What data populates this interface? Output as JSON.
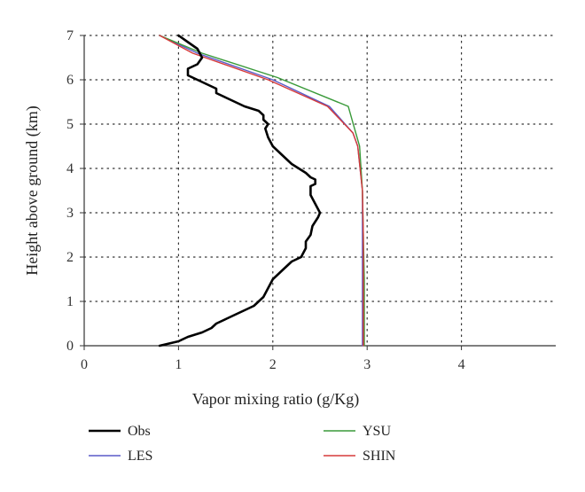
{
  "chart_data": {
    "type": "line",
    "xlabel": "Vapor mixing ratio (g/Kg)",
    "ylabel": "Height above ground (km)",
    "xlim": [
      0,
      5
    ],
    "ylim": [
      0,
      7
    ],
    "xticks": [
      0,
      1,
      2,
      3,
      4
    ],
    "yticks": [
      0,
      1,
      2,
      3,
      4,
      5,
      6,
      7
    ],
    "grid": true,
    "legend_position": "bottom",
    "series": [
      {
        "name": "Obs",
        "color": "#000000",
        "x": [
          0.8,
          1.0,
          1.1,
          1.25,
          1.35,
          1.4,
          1.5,
          1.6,
          1.7,
          1.8,
          1.9,
          1.95,
          2.0,
          2.1,
          2.2,
          2.3,
          2.35,
          2.35,
          2.4,
          2.42,
          2.48,
          2.5,
          2.45,
          2.4,
          2.4,
          2.45,
          2.45,
          2.4,
          2.35,
          2.2,
          2.1,
          2.0,
          1.95,
          1.92,
          1.95,
          1.9,
          1.9,
          1.85,
          1.7,
          1.5,
          1.4,
          1.4,
          1.3,
          1.2,
          1.1,
          1.1,
          1.2,
          1.25,
          1.2,
          1.1,
          1.0
        ],
        "y": [
          0.0,
          0.1,
          0.2,
          0.3,
          0.4,
          0.5,
          0.6,
          0.7,
          0.8,
          0.9,
          1.1,
          1.3,
          1.5,
          1.7,
          1.9,
          2.0,
          2.2,
          2.35,
          2.5,
          2.7,
          2.9,
          3.0,
          3.2,
          3.4,
          3.6,
          3.65,
          3.75,
          3.8,
          3.9,
          4.1,
          4.3,
          4.5,
          4.7,
          4.9,
          5.0,
          5.1,
          5.2,
          5.3,
          5.4,
          5.6,
          5.7,
          5.8,
          5.9,
          6.0,
          6.1,
          6.25,
          6.35,
          6.5,
          6.7,
          6.85,
          7.0
        ]
      },
      {
        "name": "LES",
        "color": "#5a5ac8",
        "x": [
          2.95,
          2.95,
          2.95,
          2.95,
          2.9,
          2.85,
          2.6,
          2.0,
          1.2,
          0.8
        ],
        "y": [
          0.0,
          1.5,
          2.5,
          3.5,
          4.5,
          4.8,
          5.4,
          6.0,
          6.6,
          7.0
        ]
      },
      {
        "name": "YSU",
        "color": "#3a9a3a",
        "x": [
          2.97,
          2.97,
          2.96,
          2.95,
          2.92,
          2.88,
          2.8,
          2.05,
          1.25,
          0.8
        ],
        "y": [
          0.0,
          1.5,
          2.5,
          3.5,
          4.5,
          4.8,
          5.4,
          6.05,
          6.6,
          7.0
        ]
      },
      {
        "name": "SHIN",
        "color": "#d63a3a",
        "x": [
          2.96,
          2.96,
          2.96,
          2.95,
          2.9,
          2.85,
          2.58,
          1.95,
          1.15,
          0.8
        ],
        "y": [
          0.0,
          1.5,
          2.5,
          3.5,
          4.5,
          4.8,
          5.4,
          6.0,
          6.6,
          7.0
        ]
      }
    ]
  },
  "legend": {
    "items": [
      {
        "label": "Obs",
        "color": "#000000"
      },
      {
        "label": "YSU",
        "color": "#3a9a3a"
      },
      {
        "label": "LES",
        "color": "#5a5ac8"
      },
      {
        "label": "SHIN",
        "color": "#d63a3a"
      }
    ]
  }
}
